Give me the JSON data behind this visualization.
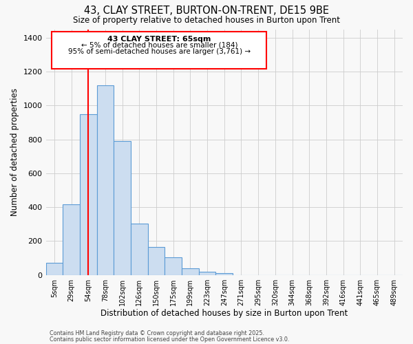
{
  "title": "43, CLAY STREET, BURTON-ON-TRENT, DE15 9BE",
  "subtitle": "Size of property relative to detached houses in Burton upon Trent",
  "xlabel": "Distribution of detached houses by size in Burton upon Trent",
  "ylabel": "Number of detached properties",
  "bar_color": "#ccddf0",
  "bar_edge_color": "#5b9bd5",
  "bin_labels": [
    "5sqm",
    "29sqm",
    "54sqm",
    "78sqm",
    "102sqm",
    "126sqm",
    "150sqm",
    "175sqm",
    "199sqm",
    "223sqm",
    "247sqm",
    "271sqm",
    "295sqm",
    "320sqm",
    "344sqm",
    "368sqm",
    "392sqm",
    "416sqm",
    "441sqm",
    "465sqm",
    "489sqm"
  ],
  "bar_values": [
    70,
    415,
    950,
    1120,
    790,
    305,
    165,
    105,
    38,
    20,
    10,
    0,
    0,
    0,
    0,
    0,
    0,
    0,
    0,
    0,
    0
  ],
  "ylim": [
    0,
    1450
  ],
  "yticks": [
    0,
    200,
    400,
    600,
    800,
    1000,
    1200,
    1400
  ],
  "red_line_x": 2.5,
  "annotation_title": "43 CLAY STREET: 65sqm",
  "annotation_line1": "← 5% of detached houses are smaller (184)",
  "annotation_line2": "95% of semi-detached houses are larger (3,761) →",
  "footnote1": "Contains HM Land Registry data © Crown copyright and database right 2025.",
  "footnote2": "Contains public sector information licensed under the Open Government Licence v3.0.",
  "background_color": "#f8f8f8",
  "grid_color": "#cccccc"
}
